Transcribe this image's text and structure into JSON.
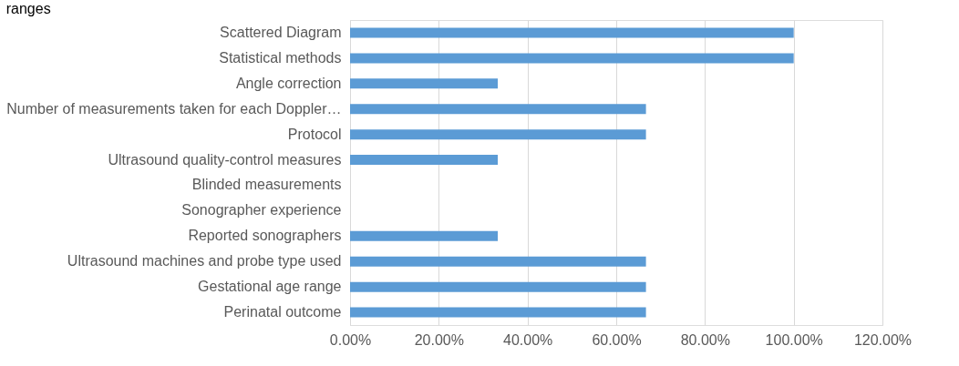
{
  "chart_data": {
    "type": "bar",
    "orientation": "horizontal",
    "title": "ranges",
    "categories": [
      "Scattered Diagram",
      "Statistical methods",
      "Angle correction",
      "Number of measurements taken for each Doppler…",
      "Protocol",
      "Ultrasound quality-control measures",
      "Blinded measurements",
      "Sonographer experience",
      "Reported sonographers",
      "Ultrasound machines and probe type used",
      "Gestational age range",
      "Perinatal outcome"
    ],
    "values": [
      100,
      100,
      33.3,
      66.7,
      66.7,
      33.3,
      0,
      0,
      33.3,
      66.7,
      66.7,
      66.7
    ],
    "color": "#5b9bd5",
    "xlim": [
      0,
      120
    ],
    "xticks": [
      {
        "value": 0,
        "label": "0.00%"
      },
      {
        "value": 20,
        "label": "20.00%"
      },
      {
        "value": 40,
        "label": "40.00%"
      },
      {
        "value": 60,
        "label": "60.00%"
      },
      {
        "value": 80,
        "label": "80.00%"
      },
      {
        "value": 100,
        "label": "100.00%"
      },
      {
        "value": 120,
        "label": "120.00%"
      }
    ],
    "grid": "x"
  }
}
